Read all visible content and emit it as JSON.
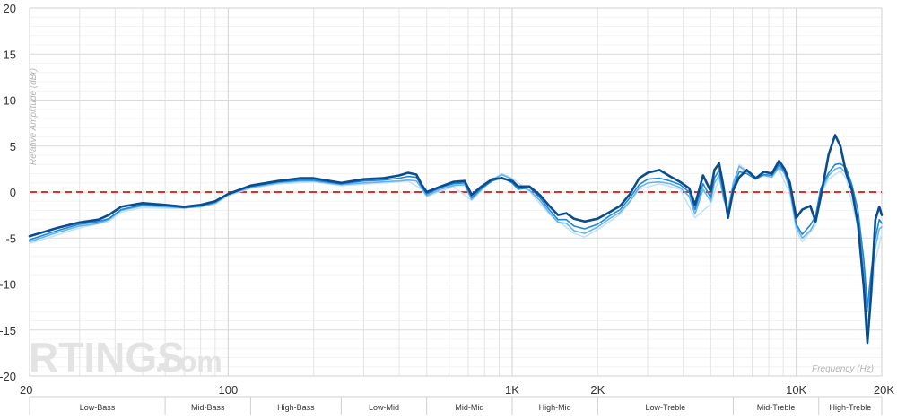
{
  "chart_data": {
    "type": "line",
    "xlabel": "Frequency (Hz)",
    "ylabel": "Relative Amplitude (dBr)",
    "x_scale": "log",
    "xlim": [
      20,
      20000
    ],
    "ylim": [
      -20,
      20
    ],
    "x_ticks": [
      {
        "value": 20,
        "label": "20"
      },
      {
        "value": 100,
        "label": "100"
      },
      {
        "value": 1000,
        "label": "1K"
      },
      {
        "value": 2000,
        "label": "2K"
      },
      {
        "value": 10000,
        "label": "10K"
      },
      {
        "value": 20000,
        "label": "20K"
      }
    ],
    "y_ticks": [
      20,
      15,
      10,
      5,
      0,
      -5,
      -10,
      -15,
      -20
    ],
    "grid": true,
    "reference_line": {
      "y": 0,
      "color": "#e0302c",
      "style": "dashed"
    },
    "bands": [
      {
        "label": "Low-Bass",
        "from": 20,
        "to": 60
      },
      {
        "label": "Mid-Bass",
        "from": 60,
        "to": 120
      },
      {
        "label": "High-Bass",
        "from": 120,
        "to": 250
      },
      {
        "label": "Low-Mid",
        "from": 250,
        "to": 500
      },
      {
        "label": "Mid-Mid",
        "from": 500,
        "to": 1000
      },
      {
        "label": "High-Mid",
        "from": 1000,
        "to": 2000
      },
      {
        "label": "Low-Treble",
        "from": 2000,
        "to": 6000
      },
      {
        "label": "Mid-Treble",
        "from": 6000,
        "to": 12000
      },
      {
        "label": "High-Treble",
        "from": 12000,
        "to": 20000
      }
    ],
    "series": [
      {
        "color": "#0a4d8c",
        "points": [
          [
            20,
            -4.8
          ],
          [
            25,
            -3.9
          ],
          [
            30,
            -3.3
          ],
          [
            35,
            -3.0
          ],
          [
            38,
            -2.5
          ],
          [
            42,
            -1.6
          ],
          [
            50,
            -1.2
          ],
          [
            60,
            -1.4
          ],
          [
            70,
            -1.6
          ],
          [
            80,
            -1.4
          ],
          [
            90,
            -1.0
          ],
          [
            100,
            -0.2
          ],
          [
            120,
            0.7
          ],
          [
            150,
            1.2
          ],
          [
            180,
            1.5
          ],
          [
            200,
            1.5
          ],
          [
            250,
            1.0
          ],
          [
            300,
            1.4
          ],
          [
            350,
            1.5
          ],
          [
            400,
            1.8
          ],
          [
            430,
            2.1
          ],
          [
            460,
            1.9
          ],
          [
            480,
            0.8
          ],
          [
            500,
            0.0
          ],
          [
            560,
            0.6
          ],
          [
            620,
            1.1
          ],
          [
            680,
            1.2
          ],
          [
            720,
            -0.3
          ],
          [
            780,
            0.6
          ],
          [
            850,
            1.4
          ],
          [
            920,
            1.5
          ],
          [
            1000,
            1.2
          ],
          [
            1050,
            0.6
          ],
          [
            1150,
            0.6
          ],
          [
            1250,
            -0.3
          ],
          [
            1350,
            -1.5
          ],
          [
            1450,
            -2.5
          ],
          [
            1550,
            -2.3
          ],
          [
            1650,
            -2.9
          ],
          [
            1800,
            -3.2
          ],
          [
            2000,
            -2.9
          ],
          [
            2200,
            -2.2
          ],
          [
            2400,
            -1.5
          ],
          [
            2600,
            -0.2
          ],
          [
            2800,
            1.5
          ],
          [
            3000,
            2.1
          ],
          [
            3300,
            2.4
          ],
          [
            3600,
            1.7
          ],
          [
            3900,
            1.1
          ],
          [
            4200,
            0.4
          ],
          [
            4400,
            -1.4
          ],
          [
            4700,
            1.8
          ],
          [
            5000,
            0.1
          ],
          [
            5150,
            2.4
          ],
          [
            5350,
            3.1
          ],
          [
            5550,
            0.5
          ],
          [
            5750,
            -2.8
          ],
          [
            6000,
            0.2
          ],
          [
            6300,
            1.6
          ],
          [
            6700,
            2.4
          ],
          [
            7200,
            1.5
          ],
          [
            7700,
            2.2
          ],
          [
            8200,
            2.0
          ],
          [
            8700,
            3.4
          ],
          [
            9100,
            2.5
          ],
          [
            9500,
            1.0
          ],
          [
            10000,
            -2.8
          ],
          [
            10500,
            -1.9
          ],
          [
            11200,
            -1.5
          ],
          [
            11700,
            -3.2
          ],
          [
            12200,
            -0.5
          ],
          [
            13000,
            4.1
          ],
          [
            13700,
            6.2
          ],
          [
            14300,
            5.0
          ],
          [
            15000,
            2.0
          ],
          [
            15700,
            0.2
          ],
          [
            16500,
            -3.5
          ],
          [
            17300,
            -10.5
          ],
          [
            17800,
            -16.4
          ],
          [
            18300,
            -11.5
          ],
          [
            19000,
            -3.0
          ],
          [
            19600,
            -1.6
          ],
          [
            20000,
            -2.5
          ]
        ]
      },
      {
        "color": "#1f86d6",
        "points": [
          [
            20,
            -5.2
          ],
          [
            25,
            -4.2
          ],
          [
            30,
            -3.5
          ],
          [
            35,
            -3.2
          ],
          [
            38,
            -2.9
          ],
          [
            42,
            -1.9
          ],
          [
            50,
            -1.4
          ],
          [
            60,
            -1.5
          ],
          [
            70,
            -1.7
          ],
          [
            80,
            -1.5
          ],
          [
            90,
            -1.1
          ],
          [
            100,
            -0.2
          ],
          [
            120,
            0.6
          ],
          [
            150,
            1.1
          ],
          [
            180,
            1.3
          ],
          [
            200,
            1.3
          ],
          [
            250,
            0.9
          ],
          [
            300,
            1.2
          ],
          [
            350,
            1.3
          ],
          [
            400,
            1.5
          ],
          [
            430,
            1.7
          ],
          [
            460,
            1.6
          ],
          [
            480,
            0.6
          ],
          [
            500,
            -0.2
          ],
          [
            560,
            0.5
          ],
          [
            620,
            0.9
          ],
          [
            680,
            1.0
          ],
          [
            720,
            -0.6
          ],
          [
            780,
            0.4
          ],
          [
            850,
            1.2
          ],
          [
            920,
            1.6
          ],
          [
            1000,
            1.0
          ],
          [
            1050,
            0.3
          ],
          [
            1150,
            0.5
          ],
          [
            1250,
            -0.6
          ],
          [
            1350,
            -1.9
          ],
          [
            1450,
            -3.0
          ],
          [
            1550,
            -3.0
          ],
          [
            1650,
            -3.7
          ],
          [
            1800,
            -4.0
          ],
          [
            2000,
            -3.5
          ],
          [
            2200,
            -2.6
          ],
          [
            2400,
            -1.9
          ],
          [
            2600,
            -0.6
          ],
          [
            2800,
            0.8
          ],
          [
            3000,
            1.4
          ],
          [
            3300,
            1.5
          ],
          [
            3600,
            1.2
          ],
          [
            3900,
            0.8
          ],
          [
            4200,
            0.0
          ],
          [
            4400,
            -1.9
          ],
          [
            4700,
            0.9
          ],
          [
            5000,
            -0.6
          ],
          [
            5150,
            1.5
          ],
          [
            5350,
            2.4
          ],
          [
            5550,
            -0.3
          ],
          [
            5750,
            -2.3
          ],
          [
            6000,
            0.5
          ],
          [
            6300,
            2.2
          ],
          [
            6700,
            2.0
          ],
          [
            7200,
            1.4
          ],
          [
            7700,
            1.9
          ],
          [
            8200,
            1.8
          ],
          [
            8700,
            3.0
          ],
          [
            9100,
            2.2
          ],
          [
            9500,
            0.6
          ],
          [
            10000,
            -3.5
          ],
          [
            10500,
            -4.6
          ],
          [
            11200,
            -3.6
          ],
          [
            11700,
            -2.6
          ],
          [
            12200,
            0.4
          ],
          [
            13000,
            2.1
          ],
          [
            13700,
            3.0
          ],
          [
            14300,
            3.1
          ],
          [
            15000,
            2.6
          ],
          [
            15700,
            0.8
          ],
          [
            16500,
            -2.0
          ],
          [
            17300,
            -7.5
          ],
          [
            17800,
            -12.5
          ],
          [
            18300,
            -9.0
          ],
          [
            19000,
            -5.0
          ],
          [
            19600,
            -3.0
          ],
          [
            20000,
            -3.4
          ]
        ]
      },
      {
        "color": "#63b4f0",
        "points": [
          [
            20,
            -5.4
          ],
          [
            25,
            -4.4
          ],
          [
            30,
            -3.7
          ],
          [
            35,
            -3.4
          ],
          [
            38,
            -3.0
          ],
          [
            42,
            -2.0
          ],
          [
            50,
            -1.5
          ],
          [
            60,
            -1.6
          ],
          [
            70,
            -1.7
          ],
          [
            80,
            -1.6
          ],
          [
            90,
            -1.2
          ],
          [
            100,
            -0.3
          ],
          [
            120,
            0.5
          ],
          [
            150,
            1.0
          ],
          [
            180,
            1.2
          ],
          [
            200,
            1.2
          ],
          [
            250,
            0.8
          ],
          [
            300,
            1.0
          ],
          [
            350,
            1.1
          ],
          [
            400,
            1.2
          ],
          [
            430,
            1.3
          ],
          [
            460,
            1.2
          ],
          [
            480,
            0.4
          ],
          [
            500,
            -0.4
          ],
          [
            560,
            0.3
          ],
          [
            620,
            0.7
          ],
          [
            680,
            0.8
          ],
          [
            720,
            -0.8
          ],
          [
            780,
            0.3
          ],
          [
            850,
            1.3
          ],
          [
            920,
            1.9
          ],
          [
            1000,
            1.4
          ],
          [
            1050,
            0.6
          ],
          [
            1150,
            0.2
          ],
          [
            1250,
            -0.9
          ],
          [
            1350,
            -2.2
          ],
          [
            1450,
            -3.3
          ],
          [
            1550,
            -3.4
          ],
          [
            1650,
            -4.2
          ],
          [
            1800,
            -4.5
          ],
          [
            2000,
            -3.8
          ],
          [
            2200,
            -2.9
          ],
          [
            2400,
            -2.2
          ],
          [
            2600,
            -1.0
          ],
          [
            2800,
            0.5
          ],
          [
            3000,
            1.0
          ],
          [
            3300,
            1.1
          ],
          [
            3600,
            0.9
          ],
          [
            3900,
            0.5
          ],
          [
            4200,
            -0.5
          ],
          [
            4400,
            -2.4
          ],
          [
            4700,
            0.3
          ],
          [
            5000,
            -1.0
          ],
          [
            5150,
            1.0
          ],
          [
            5350,
            1.8
          ],
          [
            5550,
            -0.8
          ],
          [
            5750,
            -2.0
          ],
          [
            6000,
            1.0
          ],
          [
            6300,
            2.8
          ],
          [
            6700,
            2.2
          ],
          [
            7200,
            1.6
          ],
          [
            7700,
            1.8
          ],
          [
            8200,
            1.6
          ],
          [
            8700,
            2.7
          ],
          [
            9100,
            2.0
          ],
          [
            9500,
            0.2
          ],
          [
            10000,
            -3.8
          ],
          [
            10500,
            -5.0
          ],
          [
            11200,
            -4.2
          ],
          [
            11700,
            -3.2
          ],
          [
            12200,
            0.0
          ],
          [
            13000,
            1.8
          ],
          [
            13700,
            2.5
          ],
          [
            14300,
            2.7
          ],
          [
            15000,
            2.0
          ],
          [
            15700,
            0.2
          ],
          [
            16500,
            -3.0
          ],
          [
            17300,
            -9.0
          ],
          [
            17800,
            -13.0
          ],
          [
            18300,
            -10.0
          ],
          [
            19000,
            -6.0
          ],
          [
            19600,
            -4.0
          ],
          [
            20000,
            -3.8
          ]
        ]
      },
      {
        "color": "#c4e1f8",
        "points": [
          [
            20,
            -5.6
          ],
          [
            30,
            -3.9
          ],
          [
            38,
            -3.2
          ],
          [
            42,
            -2.2
          ],
          [
            50,
            -1.7
          ],
          [
            70,
            -1.8
          ],
          [
            90,
            -1.3
          ],
          [
            100,
            -0.4
          ],
          [
            120,
            0.4
          ],
          [
            150,
            0.9
          ],
          [
            200,
            1.1
          ],
          [
            250,
            0.7
          ],
          [
            350,
            1.0
          ],
          [
            430,
            1.2
          ],
          [
            480,
            0.3
          ],
          [
            500,
            -0.5
          ],
          [
            620,
            0.6
          ],
          [
            720,
            -0.9
          ],
          [
            850,
            1.4
          ],
          [
            920,
            2.0
          ],
          [
            1000,
            1.5
          ],
          [
            1150,
            0.1
          ],
          [
            1350,
            -2.4
          ],
          [
            1650,
            -4.5
          ],
          [
            1800,
            -4.9
          ],
          [
            2000,
            -4.1
          ],
          [
            2400,
            -2.4
          ],
          [
            2800,
            0.3
          ],
          [
            3300,
            0.9
          ],
          [
            3900,
            0.3
          ],
          [
            4400,
            -2.8
          ],
          [
            5000,
            -1.3
          ],
          [
            5350,
            1.5
          ],
          [
            5750,
            -1.6
          ],
          [
            6300,
            3.0
          ],
          [
            7200,
            1.5
          ],
          [
            8700,
            2.5
          ],
          [
            9500,
            -0.2
          ],
          [
            10000,
            -4.2
          ],
          [
            10500,
            -5.4
          ],
          [
            11700,
            -3.6
          ],
          [
            12200,
            -0.3
          ],
          [
            13000,
            1.4
          ],
          [
            14300,
            2.3
          ],
          [
            15000,
            1.5
          ],
          [
            16500,
            -4.0
          ],
          [
            17300,
            -11.0
          ],
          [
            17800,
            -14.5
          ],
          [
            18300,
            -12.0
          ],
          [
            19000,
            -7.5
          ],
          [
            20000,
            -4.5
          ]
        ]
      }
    ]
  }
}
